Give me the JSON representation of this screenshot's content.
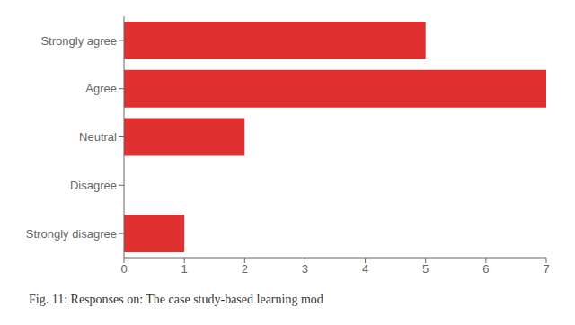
{
  "chart_data": {
    "type": "bar",
    "title": "Fig. 11: Responses on: The case study-based learning mod",
    "orientation": "horizontal",
    "categories": [
      "Strongly disagree",
      "Disagree",
      "Neutral",
      "Agree",
      "Strongly agree"
    ],
    "values": [
      1,
      0,
      2,
      7,
      5
    ],
    "color": "#e03030",
    "xlim": [
      0,
      7
    ],
    "xticks": [
      0,
      1,
      2,
      3,
      4,
      5,
      6,
      7
    ],
    "grid": false
  }
}
